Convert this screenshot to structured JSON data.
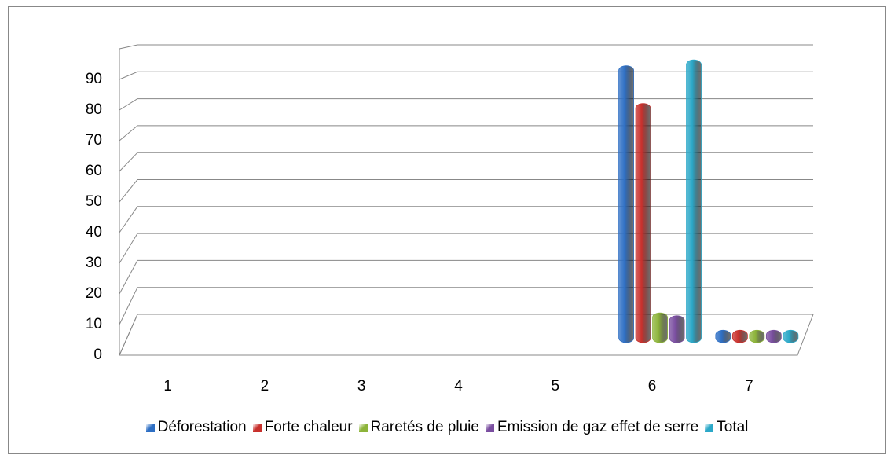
{
  "chart_data": {
    "type": "bar3d",
    "categories": [
      "1",
      "2",
      "3",
      "4",
      "5",
      "6",
      "7"
    ],
    "series": [
      {
        "name": "Déforestation",
        "color": "#2e6fc4",
        "values": [
          null,
          null,
          null,
          null,
          null,
          92,
          1
        ]
      },
      {
        "name": "Forte chaleur",
        "color": "#c8302c",
        "values": [
          null,
          null,
          null,
          null,
          null,
          79,
          1
        ]
      },
      {
        "name": "Raretés de pluie",
        "color": "#8db43a",
        "values": [
          null,
          null,
          null,
          null,
          null,
          7,
          1
        ]
      },
      {
        "name": "Emission de gaz effet de serre",
        "color": "#7a4ea0",
        "values": [
          null,
          null,
          null,
          null,
          null,
          6,
          1
        ]
      },
      {
        "name": "Total",
        "color": "#2ba8c8",
        "values": [
          null,
          null,
          null,
          null,
          null,
          94,
          1
        ]
      }
    ],
    "ylim": [
      0,
      100
    ],
    "yticks": [
      0,
      10,
      20,
      30,
      40,
      50,
      60,
      70,
      80,
      90
    ],
    "grid": true,
    "legend": "bottom"
  }
}
